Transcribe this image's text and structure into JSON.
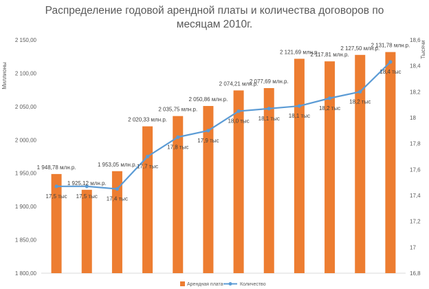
{
  "chart_data": {
    "type": "bar",
    "title_lines": [
      "Распределение годовой арендной платы и количества договоров по",
      "месяцам 2010г."
    ],
    "ylabel_left": "Миллионы",
    "ylabel_right": "Тысячи",
    "y_left": {
      "range": [
        1800,
        2150
      ],
      "ticks": [
        1800,
        1850,
        1900,
        1950,
        2000,
        2050,
        2100,
        2150
      ],
      "tick_labels": [
        "1 800,00",
        "1 850,00",
        "1 900,00",
        "1 950,00",
        "2 000,00",
        "2 050,00",
        "2 100,00",
        "2 150,00"
      ]
    },
    "y_right": {
      "range": [
        16.8,
        18.6
      ],
      "ticks": [
        16.8,
        17,
        17.2,
        17.4,
        17.6,
        17.8,
        18,
        18.2,
        18.4,
        18.6
      ],
      "tick_labels": [
        "16,8",
        "17",
        "17,2",
        "17,4",
        "17,6",
        "17,8",
        "18",
        "18,2",
        "18,4",
        "18,6"
      ]
    },
    "grid": false,
    "legend_position": "bottom",
    "colors": {
      "bar": "#ED7D31",
      "line": "#5B9BD5",
      "text": "#595959",
      "axis": "#D9D9D9"
    },
    "series": [
      {
        "name": "Арендная плата",
        "type": "bar",
        "axis": "left",
        "values": [
          1948.78,
          1925.12,
          1953.05,
          2020.33,
          2035.75,
          2050.86,
          2074.21,
          2077.69,
          2121.69,
          2117.81,
          2127.5,
          2131.78
        ],
        "labels": [
          "1 948,78 млн.р.",
          "1 925,12 млн.р.",
          "1 953,05 млн.р.",
          "2 020,33 млн.р.",
          "2 035,75 млн.р.",
          "2 050,86 млн.р.",
          "2 074,21 млн.р.",
          "2 077,69 млн.р.",
          "2 121,69 млн.р.",
          "2 117,81 млн.р.",
          "2 127,50 млн.р.",
          "2 131,78 млн.р."
        ]
      },
      {
        "name": "Количество",
        "type": "line",
        "axis": "right",
        "values": [
          17.47,
          17.47,
          17.45,
          17.7,
          17.85,
          17.9,
          18.05,
          18.07,
          18.09,
          18.15,
          18.2,
          18.43
        ],
        "labels": [
          "17,5 тыс",
          "17,5 тыс",
          "17,4 тыс",
          "17,7 тыс",
          "17,8 тыс",
          "17,9 тыс",
          "18,0 тыс",
          "18,1 тыс",
          "18,1 тыс",
          "18,2 тыс",
          "18,2 тыс",
          "18,4 тыс"
        ]
      }
    ]
  }
}
